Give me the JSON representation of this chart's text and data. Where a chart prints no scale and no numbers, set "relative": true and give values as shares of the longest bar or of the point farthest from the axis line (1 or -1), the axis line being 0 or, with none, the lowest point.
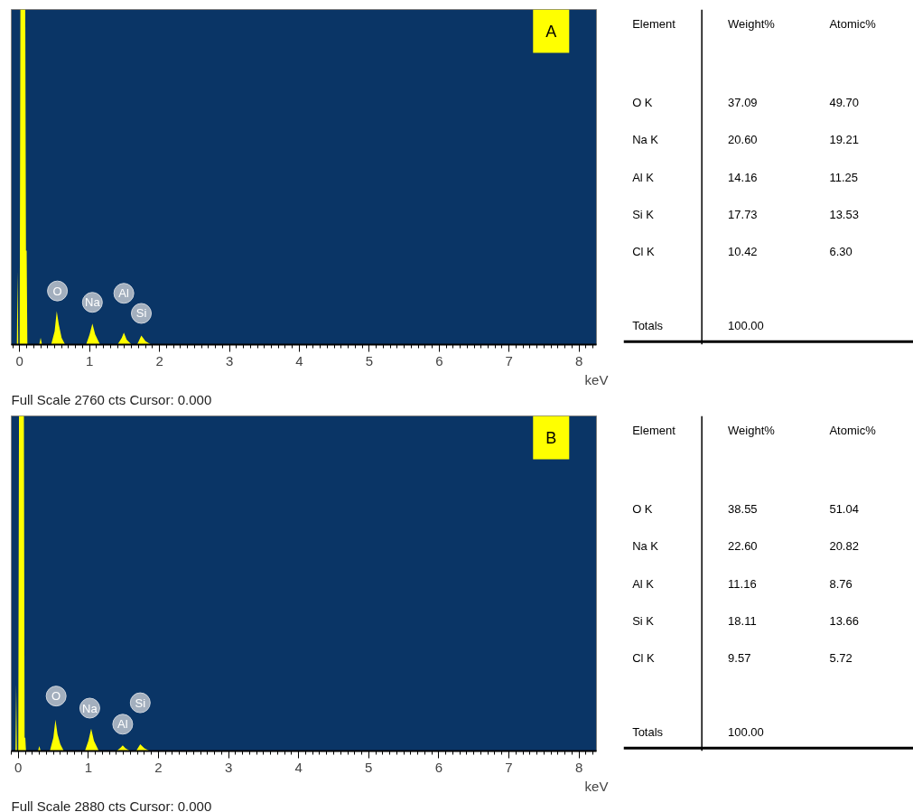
{
  "chart_data": [
    {
      "type": "area",
      "title": "A",
      "xlabel": "keV",
      "relative": true,
      "xlim": [
        -0.12,
        8.25
      ],
      "xticks": [
        0,
        1,
        2,
        3,
        4,
        5,
        6,
        7,
        8
      ],
      "x": [
        -0.1,
        -0.04,
        -0.03,
        -0.02,
        0.0,
        0.01,
        0.08,
        0.09,
        0.1,
        0.11,
        0.13,
        0.28,
        0.3,
        0.32,
        0.45,
        0.5,
        0.53,
        0.56,
        0.6,
        0.65,
        0.95,
        1.0,
        1.04,
        1.08,
        1.15,
        1.4,
        1.46,
        1.49,
        1.53,
        1.6,
        1.68,
        1.74,
        1.8,
        1.88,
        8.2
      ],
      "series": [
        {
          "color": "#ffff00",
          "values": [
            0,
            0,
            0.22,
            0,
            0,
            1,
            1,
            0.28,
            0.28,
            0,
            0,
            0,
            0.02,
            0,
            0,
            0.04,
            0.1,
            0.06,
            0.02,
            0,
            0,
            0.03,
            0.063,
            0.03,
            0,
            0,
            0.02,
            0.036,
            0.015,
            0,
            0,
            0.027,
            0.01,
            0,
            0
          ]
        }
      ],
      "annotations": [
        {
          "text": "O",
          "x": 0.54,
          "y": 0.16
        },
        {
          "text": "Na",
          "x": 1.04,
          "y": 0.126
        },
        {
          "text": "Al",
          "x": 1.49,
          "y": 0.153
        },
        {
          "text": "Si",
          "x": 1.74,
          "y": 0.093
        },
        "Full Scale 2760 cts Cursor: 0.000"
      ]
    },
    {
      "type": "other",
      "ylabel": "Element",
      "categories": [
        "Weight%",
        "Atomic%"
      ],
      "y_categories": [
        "O K",
        "Na K",
        "Al K",
        "Si K",
        "Cl K",
        "Totals"
      ],
      "cell_labels": [
        [
          "37.09",
          "49.70"
        ],
        [
          "20.60",
          "19.21"
        ],
        [
          "14.16",
          "11.25"
        ],
        [
          "17.73",
          "13.53"
        ],
        [
          "10.42",
          "6.30"
        ],
        [
          "100.00",
          null
        ]
      ]
    },
    {
      "type": "area",
      "title": "B",
      "xlabel": "keV",
      "relative": true,
      "xlim": [
        -0.1,
        8.25
      ],
      "xticks": [
        0,
        1,
        2,
        3,
        4,
        5,
        6,
        7,
        8
      ],
      "x": [
        -0.1,
        -0.04,
        -0.03,
        -0.02,
        0.0,
        0.01,
        0.08,
        0.09,
        0.1,
        0.11,
        0.13,
        0.28,
        0.3,
        0.32,
        0.45,
        0.5,
        0.53,
        0.56,
        0.6,
        0.65,
        0.95,
        1.0,
        1.04,
        1.08,
        1.15,
        1.4,
        1.46,
        1.49,
        1.53,
        1.6,
        1.68,
        1.74,
        1.8,
        1.88,
        8.2
      ],
      "series": [
        {
          "color": "#ffff00",
          "values": [
            0,
            0,
            0.2,
            0,
            0,
            1,
            1,
            0.04,
            0.04,
            0,
            0,
            0,
            0.015,
            0,
            0,
            0.04,
            0.094,
            0.05,
            0.02,
            0,
            0,
            0.03,
            0.067,
            0.03,
            0,
            0,
            0.01,
            0.017,
            0.008,
            0,
            0,
            0.02,
            0.008,
            0,
            0
          ]
        }
      ],
      "annotations": [
        {
          "text": "O",
          "x": 0.54,
          "y": 0.164
        },
        {
          "text": "Na",
          "x": 1.02,
          "y": 0.128
        },
        {
          "text": "Al",
          "x": 1.49,
          "y": 0.08
        },
        {
          "text": "Si",
          "x": 1.74,
          "y": 0.144
        },
        "Full Scale 2880 cts Cursor: 0.000"
      ]
    },
    {
      "type": "other",
      "ylabel": "Element",
      "categories": [
        "Weight%",
        "Atomic%"
      ],
      "y_categories": [
        "O K",
        "Na K",
        "Al K",
        "Si K",
        "Cl K",
        "Totals"
      ],
      "cell_labels": [
        [
          "38.55",
          "51.04"
        ],
        [
          "22.60",
          "20.82"
        ],
        [
          "11.16",
          "8.76"
        ],
        [
          "18.11",
          "13.66"
        ],
        [
          "9.57",
          "5.72"
        ],
        [
          "100.00",
          null
        ]
      ]
    }
  ]
}
